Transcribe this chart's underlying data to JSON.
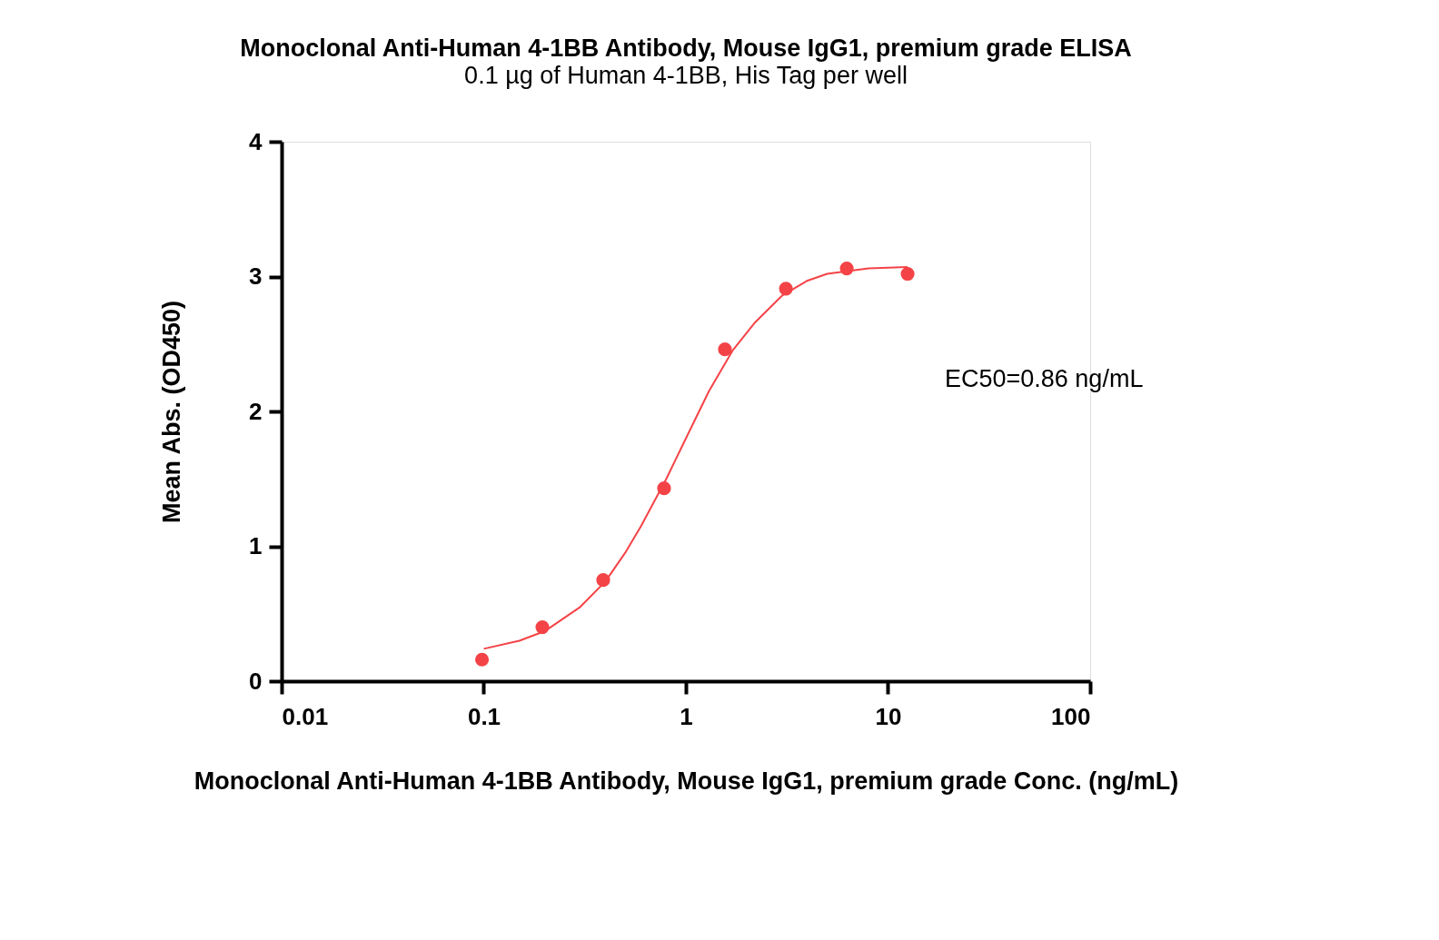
{
  "chart_data": {
    "type": "scatter",
    "title": "Monoclonal Anti-Human 4-1BB Antibody, Mouse IgG1, premium grade ELISA",
    "subtitle": "0.1 µg of Human 4-1BB, His Tag per well",
    "xlabel": "Monoclonal Anti-Human 4-1BB Antibody, Mouse IgG1, premium grade Conc. (ng/mL)",
    "ylabel": "Mean Abs. (OD450)",
    "log": "x",
    "xlim": [
      0.01,
      100
    ],
    "xticks": [
      0.01,
      0.1,
      1,
      10,
      100
    ],
    "ylim": [
      0,
      4
    ],
    "yticks": [
      0,
      1,
      2,
      3,
      4
    ],
    "grid": false,
    "annotations": [
      "EC50=0.86 ng/mL"
    ],
    "series": [
      {
        "marker": "circle",
        "color": "#f44347",
        "x": [
          0.098,
          0.195,
          0.39,
          0.78,
          1.56,
          3.125,
          6.25,
          12.5
        ],
        "values": [
          0.16,
          0.4,
          0.75,
          1.43,
          2.46,
          2.91,
          3.06,
          3.02
        ]
      },
      {
        "type": "line",
        "line_style": "solid",
        "color": "#f44347",
        "x": [
          0.1,
          0.15,
          0.2,
          0.3,
          0.4,
          0.5,
          0.6,
          0.8,
          1.0,
          1.3,
          1.7,
          2.2,
          3,
          4,
          5,
          8,
          12.5
        ],
        "values": [
          0.24,
          0.3,
          0.37,
          0.55,
          0.74,
          0.95,
          1.15,
          1.5,
          1.8,
          2.15,
          2.45,
          2.66,
          2.86,
          2.97,
          3.02,
          3.06,
          3.07
        ]
      }
    ]
  }
}
